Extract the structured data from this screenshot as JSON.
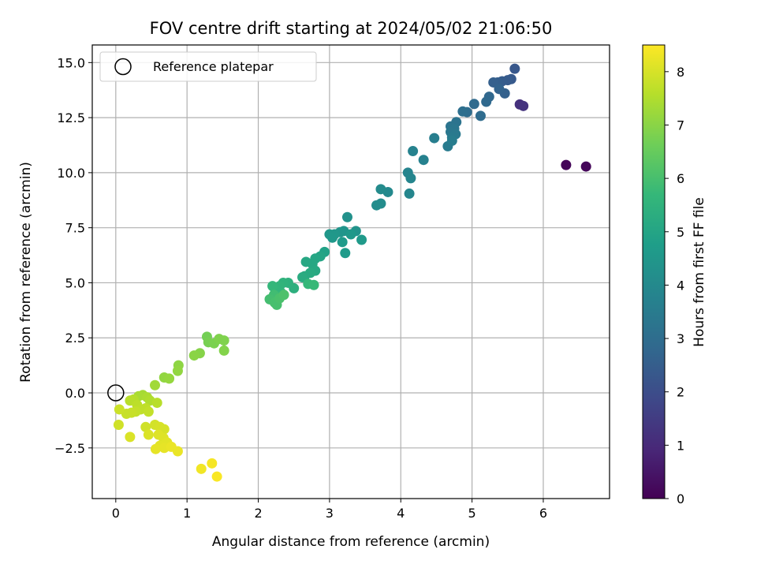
{
  "chart_data": {
    "type": "scatter",
    "title": "FOV centre drift starting at 2024/05/02 21:06:50",
    "xlabel": "Angular distance from reference (arcmin)",
    "ylabel": "Rotation from reference (arcmin)",
    "xlim": [
      -0.33,
      6.93
    ],
    "ylim": [
      -4.8,
      15.8
    ],
    "xticks": [
      0,
      1,
      2,
      3,
      4,
      5,
      6
    ],
    "yticks": [
      -2.5,
      0.0,
      2.5,
      5.0,
      7.5,
      10.0,
      12.5,
      15.0
    ],
    "ytick_labels": [
      "−2.5",
      "0.0",
      "2.5",
      "5.0",
      "7.5",
      "10.0",
      "12.5",
      "15.0"
    ],
    "grid": true,
    "colormap": "viridis",
    "colorbar": {
      "label": "Hours from first FF file",
      "range": [
        0,
        8.5
      ],
      "ticks": [
        0,
        1,
        2,
        3,
        4,
        5,
        6,
        7,
        8
      ]
    },
    "legend": {
      "placement": "upper-left",
      "entries": [
        "Reference platepar"
      ]
    },
    "reference_point": [
      0,
      0
    ],
    "series": [
      {
        "values": [
          [
            6.32,
            10.35,
            0.1
          ],
          [
            6.6,
            10.28,
            0.15
          ],
          [
            5.67,
            13.1,
            1.2
          ],
          [
            5.72,
            13.03,
            1.25
          ],
          [
            5.6,
            14.72,
            2.3
          ],
          [
            5.55,
            14.25,
            2.35
          ],
          [
            5.5,
            14.2,
            2.4
          ],
          [
            5.42,
            14.15,
            2.45
          ],
          [
            5.36,
            14.1,
            2.5
          ],
          [
            5.3,
            14.1,
            2.55
          ],
          [
            5.46,
            13.6,
            2.6
          ],
          [
            5.38,
            13.8,
            2.65
          ],
          [
            5.24,
            13.45,
            2.8
          ],
          [
            5.2,
            13.22,
            2.85
          ],
          [
            5.03,
            13.12,
            2.9
          ],
          [
            5.12,
            12.58,
            2.95
          ],
          [
            4.93,
            12.75,
            3.0
          ],
          [
            4.87,
            12.78,
            3.05
          ],
          [
            4.78,
            12.3,
            3.2
          ],
          [
            4.7,
            12.1,
            3.25
          ],
          [
            4.75,
            12.0,
            3.3
          ],
          [
            4.7,
            11.85,
            3.35
          ],
          [
            4.77,
            11.75,
            3.4
          ],
          [
            4.72,
            11.6,
            3.45
          ],
          [
            4.66,
            11.2,
            3.5
          ],
          [
            4.72,
            11.45,
            3.55
          ],
          [
            4.47,
            11.57,
            3.6
          ],
          [
            4.32,
            10.58,
            3.7
          ],
          [
            4.17,
            10.98,
            3.75
          ],
          [
            4.1,
            10.0,
            3.8
          ],
          [
            4.14,
            9.75,
            3.85
          ],
          [
            4.12,
            9.05,
            3.9
          ],
          [
            3.82,
            9.12,
            4.0
          ],
          [
            3.72,
            9.25,
            4.05
          ],
          [
            3.72,
            8.6,
            4.1
          ],
          [
            3.66,
            8.52,
            4.15
          ],
          [
            3.25,
            7.98,
            4.3
          ],
          [
            3.37,
            7.35,
            4.35
          ],
          [
            3.2,
            7.35,
            4.4
          ],
          [
            3.15,
            7.3,
            4.45
          ],
          [
            3.07,
            7.2,
            4.5
          ],
          [
            3.0,
            7.2,
            4.5
          ],
          [
            3.04,
            7.05,
            4.55
          ],
          [
            3.3,
            7.2,
            4.55
          ],
          [
            3.45,
            6.95,
            4.6
          ],
          [
            3.18,
            6.85,
            4.6
          ],
          [
            3.22,
            6.35,
            4.65
          ],
          [
            2.93,
            6.4,
            4.9
          ],
          [
            2.87,
            6.2,
            5.0
          ],
          [
            2.8,
            6.1,
            5.05
          ],
          [
            2.76,
            5.85,
            5.1
          ],
          [
            2.67,
            5.95,
            5.1
          ],
          [
            2.8,
            5.55,
            5.15
          ],
          [
            2.73,
            5.45,
            5.2
          ],
          [
            2.65,
            5.3,
            5.2
          ],
          [
            2.62,
            5.25,
            5.25
          ],
          [
            2.5,
            4.75,
            5.4
          ],
          [
            2.42,
            5.0,
            5.45
          ],
          [
            2.35,
            5.0,
            5.5
          ],
          [
            2.3,
            4.85,
            5.55
          ],
          [
            2.24,
            4.65,
            5.6
          ],
          [
            2.32,
            4.55,
            5.6
          ],
          [
            2.3,
            4.4,
            5.65
          ],
          [
            2.2,
            4.85,
            5.65
          ],
          [
            2.7,
            4.95,
            5.7
          ],
          [
            2.78,
            4.9,
            5.75
          ],
          [
            2.22,
            4.45,
            5.9
          ],
          [
            2.16,
            4.25,
            5.95
          ],
          [
            2.23,
            4.1,
            6.0
          ],
          [
            2.26,
            4.0,
            6.0
          ],
          [
            2.3,
            4.3,
            6.05
          ],
          [
            2.36,
            4.45,
            6.1
          ],
          [
            1.28,
            2.55,
            6.7
          ],
          [
            1.3,
            2.3,
            6.75
          ],
          [
            1.38,
            2.25,
            6.8
          ],
          [
            1.45,
            2.45,
            6.85
          ],
          [
            1.52,
            2.38,
            6.85
          ],
          [
            1.52,
            1.92,
            6.9
          ],
          [
            1.18,
            1.8,
            6.95
          ],
          [
            1.1,
            1.7,
            7.0
          ],
          [
            0.88,
            1.25,
            7.05
          ],
          [
            0.87,
            1.0,
            7.1
          ],
          [
            0.68,
            0.7,
            7.1
          ],
          [
            0.75,
            0.65,
            7.15
          ],
          [
            0.55,
            0.35,
            7.3
          ],
          [
            0.38,
            -0.1,
            7.35
          ],
          [
            0.32,
            -0.15,
            7.4
          ],
          [
            0.44,
            -0.2,
            7.45
          ],
          [
            0.48,
            -0.35,
            7.5
          ],
          [
            0.25,
            -0.3,
            7.55
          ],
          [
            0.2,
            -0.35,
            7.6
          ],
          [
            0.58,
            -0.45,
            7.6
          ],
          [
            0.3,
            -0.55,
            7.65
          ],
          [
            0.35,
            -0.75,
            7.7
          ],
          [
            0.42,
            -0.7,
            7.7
          ],
          [
            0.46,
            -0.85,
            7.75
          ],
          [
            0.28,
            -0.85,
            7.75
          ],
          [
            0.22,
            -0.9,
            7.8
          ],
          [
            0.15,
            -0.95,
            7.8
          ],
          [
            0.05,
            -0.75,
            7.85
          ],
          [
            0.04,
            -1.45,
            7.9
          ],
          [
            0.42,
            -1.55,
            7.9
          ],
          [
            0.55,
            -1.45,
            7.95
          ],
          [
            0.62,
            -1.55,
            8.0
          ],
          [
            0.68,
            -1.65,
            8.0
          ],
          [
            0.46,
            -1.9,
            8.05
          ],
          [
            0.2,
            -2.0,
            8.05
          ],
          [
            0.6,
            -1.9,
            8.1
          ],
          [
            0.67,
            -2.05,
            8.1
          ],
          [
            0.72,
            -2.25,
            8.15
          ],
          [
            0.62,
            -2.4,
            8.15
          ],
          [
            0.68,
            -2.5,
            8.2
          ],
          [
            0.56,
            -2.55,
            8.2
          ],
          [
            0.78,
            -2.45,
            8.25
          ],
          [
            0.87,
            -2.65,
            8.25
          ],
          [
            1.2,
            -3.45,
            8.35
          ],
          [
            1.35,
            -3.2,
            8.4
          ],
          [
            1.42,
            -3.8,
            8.45
          ]
        ]
      }
    ]
  }
}
